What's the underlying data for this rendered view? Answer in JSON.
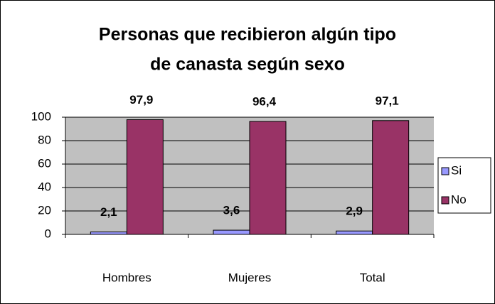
{
  "chart_data": {
    "type": "bar",
    "title": [
      "Personas que recibieron algún tipo",
      "de canasta según sexo"
    ],
    "categories": [
      "Hombres",
      "Mujeres",
      "Total"
    ],
    "series": [
      {
        "name": "Si",
        "color": "#9999ff",
        "values": [
          2.1,
          3.6,
          2.9
        ],
        "value_labels": [
          "2,1",
          "3,6",
          "2,9"
        ]
      },
      {
        "name": "No",
        "color": "#993366",
        "values": [
          97.9,
          96.4,
          97.1
        ],
        "value_labels": [
          "97,9",
          "96,4",
          "97,1"
        ]
      }
    ],
    "ylim": [
      0,
      100
    ],
    "yticks": [
      0,
      20,
      40,
      60,
      80,
      100
    ],
    "grid": true,
    "legend": "right"
  }
}
